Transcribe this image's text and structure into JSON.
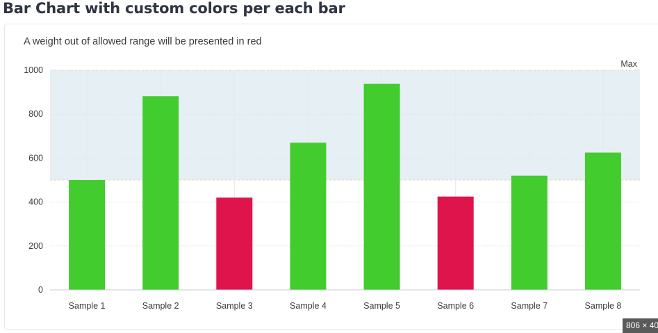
{
  "page": {
    "title": "Bar Chart with custom colors per each bar",
    "size_badge": "806 × 40"
  },
  "chart_data": {
    "type": "bar",
    "subtitle": "A weight out of allowed range will be presented in red",
    "categories": [
      "Sample 1",
      "Sample 2",
      "Sample 3",
      "Sample 4",
      "Sample 5",
      "Sample 6",
      "Sample 7",
      "Sample 8"
    ],
    "values": [
      500,
      882,
      420,
      670,
      938,
      425,
      520,
      625
    ],
    "bar_colors": [
      "#42cc2e",
      "#42cc2e",
      "#e0144c",
      "#42cc2e",
      "#42cc2e",
      "#e0144c",
      "#42cc2e",
      "#42cc2e"
    ],
    "allowed_range": {
      "min": 500,
      "max": 1000,
      "label": "Max"
    },
    "band_color": "#e6f0f4",
    "y_ticks": [
      0,
      200,
      400,
      600,
      800,
      1000
    ],
    "ylim": [
      0,
      1000
    ],
    "grid": true,
    "colors": {
      "in_range": "#42cc2e",
      "out_of_range": "#e0144c"
    }
  }
}
